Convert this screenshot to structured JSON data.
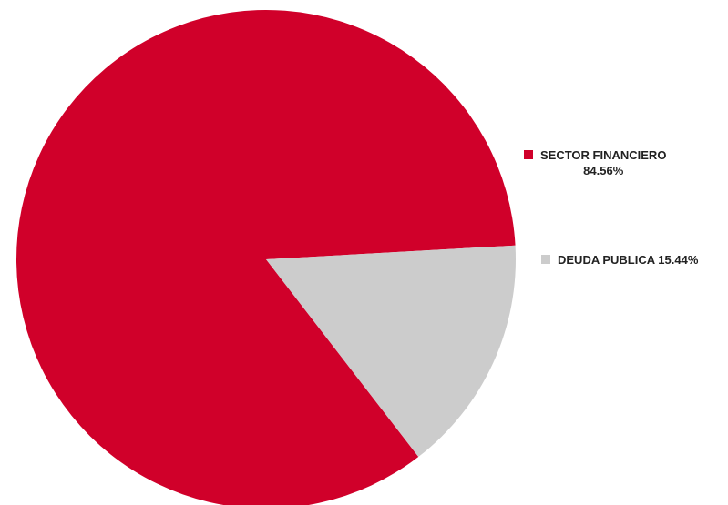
{
  "chart_data": {
    "type": "pie",
    "slices": [
      {
        "label": "SECTOR FINANCIERO",
        "value": 84.56,
        "value_label": "84.56%",
        "color": "#d0002a"
      },
      {
        "label": "DEUDA PUBLICA",
        "value": 15.44,
        "value_label": "15.44%",
        "color": "#cccccc"
      }
    ],
    "legend_position": "right"
  }
}
